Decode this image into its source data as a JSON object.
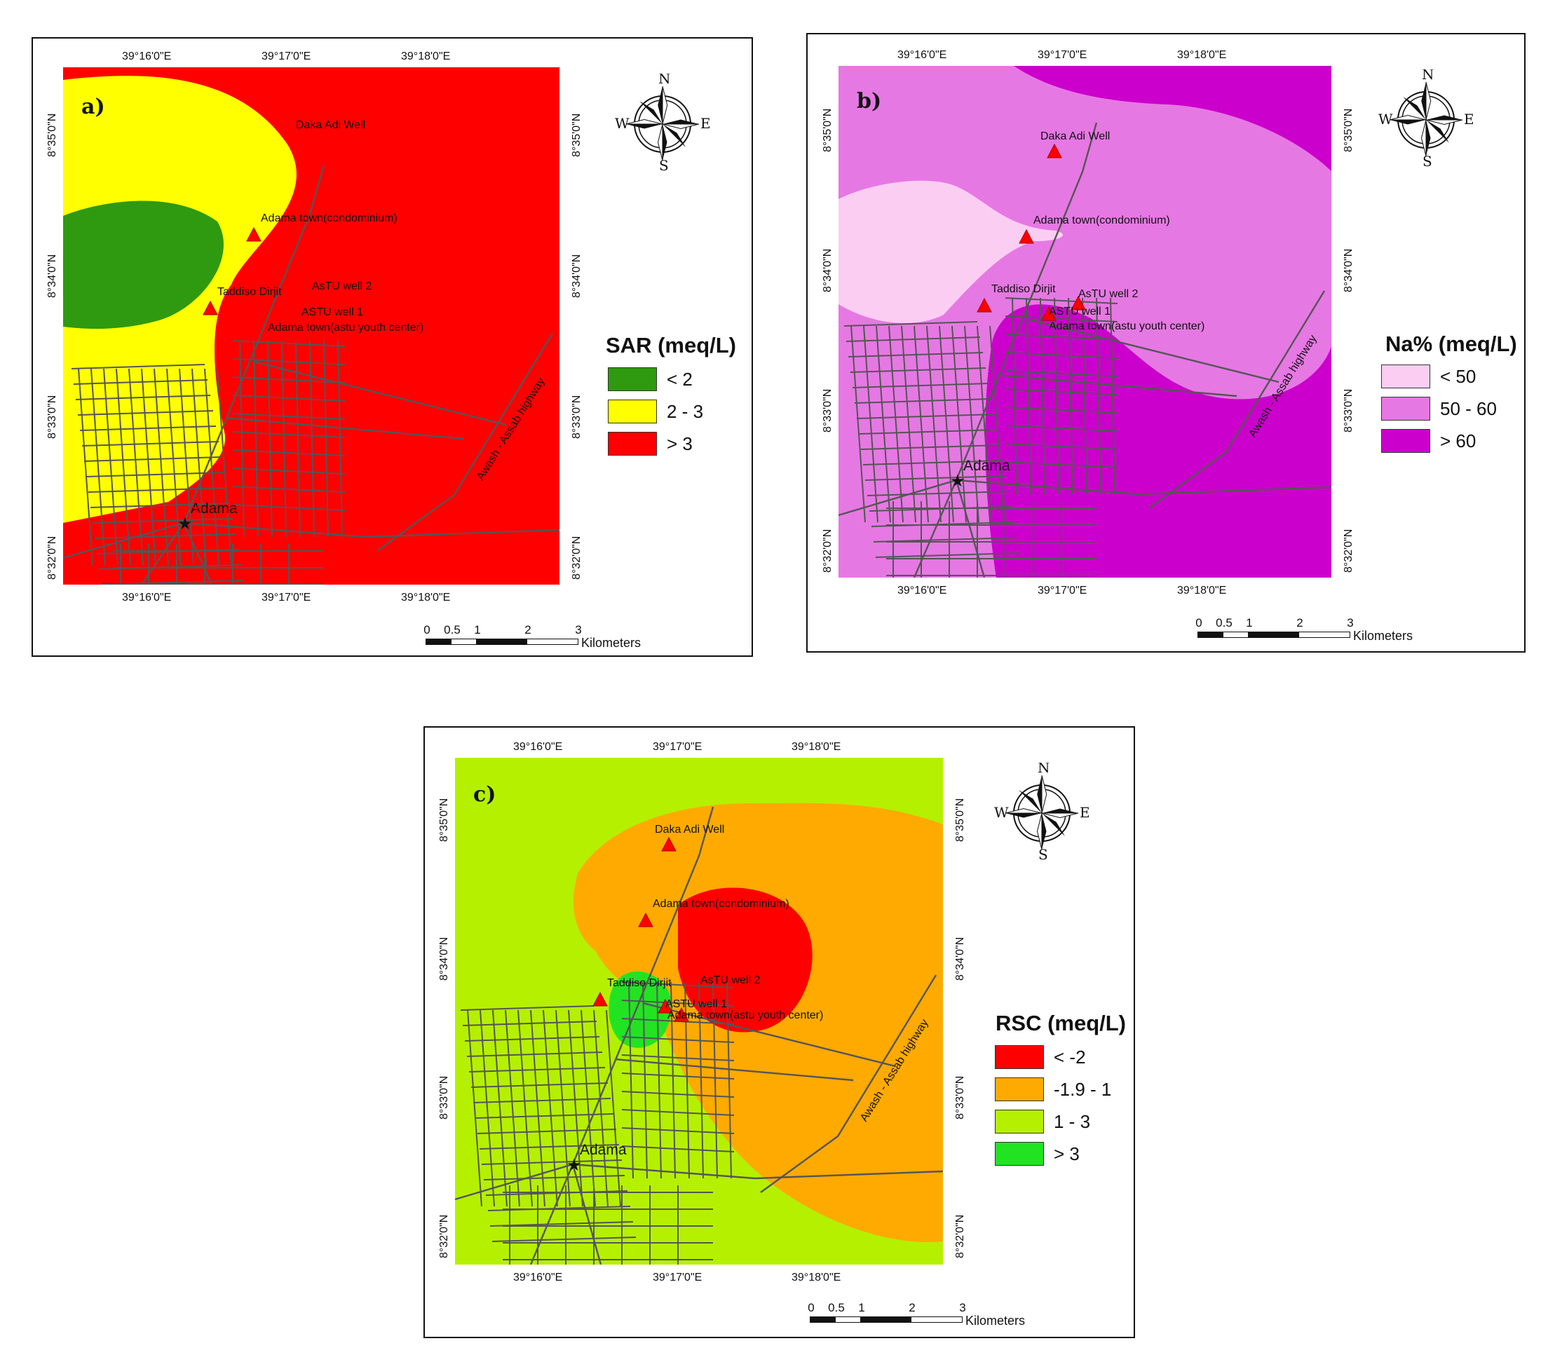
{
  "coords": {
    "top": [
      "39°16'0\"E",
      "39°17'0\"E",
      "39°18'0\"E"
    ],
    "left": [
      "8°35'0\"N",
      "8°34'0\"N",
      "8°33'0\"N",
      "8°32'0\"N"
    ]
  },
  "compass": {
    "n": "N",
    "e": "E",
    "s": "S",
    "w": "W"
  },
  "scalebar": {
    "ticks": [
      "0",
      "0.5",
      "1",
      "2",
      "3"
    ],
    "unit": "Kilometers"
  },
  "sites": {
    "daka": "Daka Adi Well",
    "condo": "Adama town(condominium)",
    "taddiso": "Taddiso Dirjit",
    "astu2": "AsTU well 2",
    "astu1": "ASTU well 1",
    "youth": "Adama town(astu youth center)",
    "city": "Adama",
    "highway": "Awash - Assab highway"
  },
  "panels": {
    "a": {
      "label": "a)",
      "legend_title": "SAR (meq/L)",
      "classes": [
        {
          "label": "< 2",
          "color": "#2f9a0f"
        },
        {
          "label": "2 - 3",
          "color": "#ffff00"
        },
        {
          "label": "> 3",
          "color": "#ff0000"
        }
      ]
    },
    "b": {
      "label": "b)",
      "legend_title": "Na% (meq/L)",
      "classes": [
        {
          "label": "< 50",
          "color": "#fccdf3"
        },
        {
          "label": "50 - 60",
          "color": "#e678e3"
        },
        {
          "label": "> 60",
          "color": "#cb00cc"
        }
      ]
    },
    "c": {
      "label": "c)",
      "legend_title": "RSC (meq/L)",
      "classes": [
        {
          "label": "< -2",
          "color": "#ff0000"
        },
        {
          "label": "-1.9 - 1",
          "color": "#ffaa00"
        },
        {
          "label": "1 - 3",
          "color": "#b5f000"
        },
        {
          "label": "> 3",
          "color": "#22e322"
        }
      ]
    }
  }
}
